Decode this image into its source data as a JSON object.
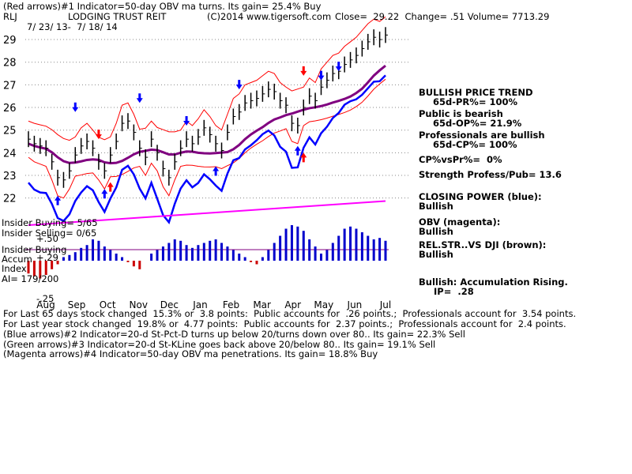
{
  "header": {
    "line1": "(Red arrows)#1 Indicator=50-day OBV ma turns. Its gain= 25.4% Buy",
    "symbol": "RLJ",
    "company": "LODGING TRUST REIT",
    "copyright": "(C)2014 www.tigersoft.com",
    "quote": "Close=  29.22  Change= .51 Volume= 7713.29",
    "date_range": "7/ 23/ 13-  7/ 18/ 14"
  },
  "left_labels": {
    "insider_buying": "Insider Buying= 5/65",
    "insider_selling": "Insider Selling= 0/65",
    "insider_buying2": "Insider Buying",
    "accum": "Accum",
    "index": "Index",
    "ai": "AI= 179/200",
    "plus50": "+.50",
    "plus29": "+.29",
    "minus25": "-.25"
  },
  "right_panel": {
    "bullish_trend": "BULLISH PRICE TREND",
    "pr": "65d-PR%= 100%",
    "public": "Public is bearish",
    "op": "65d-OP%= 21.9%",
    "prof": "Professionals are bullish",
    "cp": "65d-CP%= 100%",
    "cpvspr": "CP%vsPr%=  0%",
    "strength": "Strength Profess/Pub= 13.6",
    "closing_power": "CLOSING POWER (blue):",
    "cp_bullish": "Bullish",
    "obv": "OBV (magenta):",
    "obv_bullish": "Bullish",
    "relstr": "REL.STR..VS DJI (brown):",
    "relstr_bullish": "Bullish",
    "accum_rising": "Bullish: Accumulation Rising.",
    "ip": "IP=  .28"
  },
  "footer": {
    "line1": "For Last 65 days stock changed  15.3% or  3.8 points:  Public accounts for  .26 points.;  Professionals account for  3.54 points.",
    "line2": "For Last year stock changed  19.8% or  4.77 points:  Public accounts for  2.37 points.;  Professionals account for  2.4 points.",
    "line3": "(Blue arrows)#2 Indicator=20-d St-Pct-D turns up below 20/turns down over 80.. Its gain= 22.3% Sell",
    "line4": "(Green arrows)#3 Indicator=20-d St-KLine goes back above 20/below 80.. Its gain= 19.1% Sell",
    "line5": "(Magenta arrows)#4 Indicator=50-day OBV ma penetrations. Its gain= 18.8% Buy"
  },
  "chart_data": {
    "type": "line",
    "title": "LODGING TRUST REIT",
    "ylim": [
      21.5,
      29.7
    ],
    "y_ticks": [
      "29",
      "28",
      "27",
      "26",
      "25",
      "24",
      "23",
      "22"
    ],
    "x_months": [
      "Aug",
      "Sep",
      "Oct",
      "Nov",
      "Dec",
      "Jan",
      "Feb",
      "Mar",
      "Apr",
      "May",
      "Jun",
      "Jul"
    ],
    "grid": true,
    "colors": {
      "price": "#000000",
      "closing_power": "#0000ff",
      "obv": "#ff00ff",
      "ma": "#800080",
      "bands": "#ff0000",
      "accum_pos": "#0000cc",
      "accum_neg": "#cc0000"
    },
    "price_close": [
      24.6,
      24.4,
      24.3,
      24.2,
      23.6,
      22.9,
      22.8,
      23.2,
      23.9,
      24.3,
      24.5,
      24.2,
      23.6,
      23.2,
      23.9,
      24.5,
      25.3,
      25.4,
      24.9,
      24.2,
      23.8,
      24.6,
      24.0,
      23.3,
      22.9,
      23.6,
      24.2,
      24.6,
      24.4,
      24.7,
      25.1,
      24.8,
      24.4,
      24.1,
      24.9,
      25.6,
      25.8,
      26.2,
      26.3,
      26.4,
      26.6,
      26.8,
      26.7,
      26.3,
      26.1,
      25.3,
      25.2,
      26.0,
      26.5,
      26.3,
      26.9,
      27.2,
      27.5,
      27.6,
      27.9,
      28.1,
      28.3,
      28.6,
      28.9,
      29.1,
      29.0,
      29.2
    ],
    "sell_arrows": [
      {
        "x": 8,
        "y": 25.8
      },
      {
        "x": 19,
        "y": 26.2
      },
      {
        "x": 27,
        "y": 25.2
      },
      {
        "x": 36,
        "y": 26.8
      },
      {
        "x": 50,
        "y": 27.2
      },
      {
        "x": 53,
        "y": 27.6
      }
    ],
    "buy_arrows": [
      {
        "x": 5,
        "y": 22.1
      },
      {
        "x": 13,
        "y": 22.4
      },
      {
        "x": 32,
        "y": 23.4
      },
      {
        "x": 46,
        "y": 24.3
      }
    ],
    "red_down_arrows": [
      {
        "x": 12,
        "y": 24.6
      },
      {
        "x": 47,
        "y": 27.4
      }
    ],
    "red_up_arrows": [
      {
        "x": 14,
        "y": 22.7
      },
      {
        "x": 47,
        "y": 24.0
      }
    ],
    "accum_values": [
      -0.18,
      -0.22,
      -0.25,
      -0.2,
      -0.12,
      -0.05,
      0.05,
      0.08,
      0.12,
      0.18,
      0.22,
      0.3,
      0.28,
      0.2,
      0.15,
      0.1,
      0.05,
      -0.02,
      -0.08,
      -0.12,
      0.0,
      0.1,
      0.15,
      0.2,
      0.25,
      0.3,
      0.28,
      0.22,
      0.18,
      0.22,
      0.25,
      0.28,
      0.3,
      0.25,
      0.2,
      0.15,
      0.1,
      0.05,
      -0.02,
      -0.05,
      0.05,
      0.15,
      0.25,
      0.35,
      0.45,
      0.5,
      0.48,
      0.42,
      0.3,
      0.2,
      0.1,
      0.15,
      0.25,
      0.35,
      0.45,
      0.48,
      0.45,
      0.4,
      0.35,
      0.3,
      0.32,
      0.28
    ]
  }
}
